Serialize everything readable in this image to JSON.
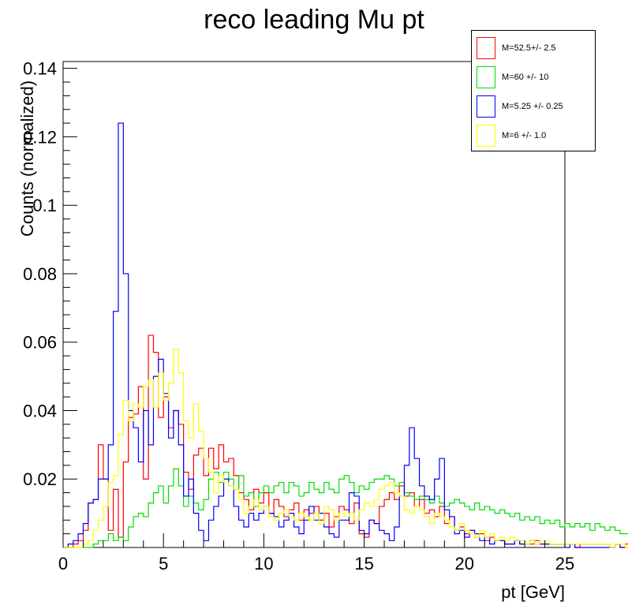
{
  "chart_data": {
    "type": "histogram",
    "title": "reco leading Mu pt",
    "xlabel": "pt [GeV]",
    "ylabel": "Counts (normalized)",
    "xlim": [
      0,
      25
    ],
    "ylim": [
      0,
      0.142
    ],
    "bin_width": 0.25,
    "x_ticks": [
      "0",
      "5",
      "10",
      "15",
      "20",
      "25"
    ],
    "y_ticks": [
      "0.02",
      "0.04",
      "0.06",
      "0.08",
      "0.1",
      "0.12",
      "0.14"
    ],
    "grid": false,
    "legend_position": "top-right",
    "series": [
      {
        "name": "M=52.5+/- 2.5",
        "color": "#ff0000",
        "values": [
          0,
          0,
          0.001,
          0.002,
          0.005,
          0.013,
          0.014,
          0.03,
          0.02,
          0.005,
          0.017,
          0.003,
          0.025,
          0.038,
          0.039,
          0.047,
          0.02,
          0.062,
          0.057,
          0.038,
          0.044,
          0.035,
          0.04,
          0.036,
          0.022,
          0.017,
          0.027,
          0.029,
          0.021,
          0.029,
          0.023,
          0.03,
          0.025,
          0.026,
          0.021,
          0.016,
          0.014,
          0.011,
          0.017,
          0.013,
          0.016,
          0.01,
          0.014,
          0.012,
          0.009,
          0.011,
          0.013,
          0.008,
          0.011,
          0.01,
          0.012,
          0.008,
          0.01,
          0.006,
          0.009,
          0.012,
          0.011,
          0.007,
          0.013,
          0.004,
          0.003,
          0.008,
          0.007,
          0.012,
          0.014,
          0.016,
          0.014,
          0.018,
          0.015,
          0.016,
          0.012,
          0.014,
          0.01,
          0.011,
          0.009,
          0.012,
          0.007,
          0.009,
          0.005,
          0.006,
          0.004,
          0.005,
          0.003,
          0.004,
          0.002,
          0.003,
          0.002,
          0.002,
          0.001,
          0.001,
          0.002,
          0.001,
          0.001,
          0.001,
          0.002,
          0.001,
          0.001,
          0.001,
          0.001,
          0.001,
          0.001,
          0.001,
          0.0,
          0.001,
          0.001,
          0.001,
          0.001,
          0.001,
          0.001,
          0.0,
          0.001,
          0.0,
          0.001,
          0.001,
          0.0,
          0.001,
          0.001,
          0.0,
          0.0,
          0.001,
          0.0,
          0.0,
          0.0,
          0.0,
          0.001,
          0.0,
          0.0,
          0.0,
          0.001,
          0.0,
          0.0,
          0.0,
          0.0,
          0.0,
          0.0,
          0.0,
          0.0,
          0.0,
          0.001,
          0.0,
          0.0,
          0.0,
          0.0,
          0.0,
          0.0,
          0.0,
          0.0,
          0.0,
          0.0,
          0.0,
          0.0,
          0.0,
          0.0,
          0.0,
          0.001,
          0.0,
          0.0,
          0.0,
          0.0,
          0.0,
          0.0,
          0.0,
          0.0,
          0.0,
          0.0,
          0.0,
          0.0,
          0.0,
          0.0,
          0.0,
          0.0,
          0.0,
          0.0,
          0.0,
          0.0,
          0.0,
          0.0,
          0.0,
          0.0,
          0.0,
          0.0,
          0.0,
          0.0,
          0.0,
          0.0,
          0.0,
          0.0,
          0.0,
          0.0,
          0.0,
          0.0,
          0.0,
          0.0,
          0.0,
          0.0,
          0.0,
          0.0,
          0.0,
          0.0,
          0.0,
          0.001,
          0.0,
          0.0,
          0.002,
          0.001,
          0.0
        ]
      },
      {
        "name": "M=60 +/- 10",
        "color": "#00dd00",
        "values": [
          0,
          0,
          0,
          0,
          0,
          0,
          0.001,
          0.002,
          0.002,
          0.004,
          0.002,
          0.003,
          0.002,
          0.006,
          0.009,
          0.01,
          0.009,
          0.013,
          0.016,
          0.018,
          0.013,
          0.018,
          0.023,
          0.018,
          0.012,
          0.015,
          0.013,
          0.011,
          0.014,
          0.02,
          0.022,
          0.019,
          0.022,
          0.02,
          0.017,
          0.021,
          0.015,
          0.016,
          0.012,
          0.016,
          0.018,
          0.016,
          0.018,
          0.019,
          0.016,
          0.019,
          0.018,
          0.015,
          0.016,
          0.019,
          0.017,
          0.016,
          0.019,
          0.017,
          0.016,
          0.02,
          0.021,
          0.019,
          0.016,
          0.018,
          0.017,
          0.019,
          0.02,
          0.02,
          0.021,
          0.02,
          0.018,
          0.019,
          0.016,
          0.015,
          0.014,
          0.015,
          0.014,
          0.013,
          0.015,
          0.013,
          0.012,
          0.013,
          0.014,
          0.013,
          0.012,
          0.011,
          0.013,
          0.011,
          0.012,
          0.011,
          0.01,
          0.011,
          0.01,
          0.009,
          0.01,
          0.008,
          0.009,
          0.008,
          0.009,
          0.007,
          0.008,
          0.007,
          0.008,
          0.006,
          0.007,
          0.006,
          0.007,
          0.006,
          0.007,
          0.005,
          0.007,
          0.006,
          0.005,
          0.006,
          0.005,
          0.004,
          0.004,
          0.005,
          0.004,
          0.004,
          0.003,
          0.004,
          0.003,
          0.003,
          0.003,
          0.003,
          0.004,
          0.002,
          0.003,
          0.003,
          0.002,
          0.002,
          0.002,
          0.003,
          0.002,
          0.002,
          0.002,
          0.003,
          0.002,
          0.002,
          0.002,
          0.002,
          0.002,
          0.002,
          0.002,
          0.001,
          0.002,
          0.002,
          0.001,
          0.002,
          0.001,
          0.002,
          0.002,
          0.002,
          0.002,
          0.002,
          0.001,
          0.001,
          0.002,
          0.001,
          0.002,
          0.001,
          0.001,
          0.001,
          0.001,
          0.002,
          0.001,
          0.001,
          0.001,
          0.001,
          0.001,
          0.001,
          0.001,
          0.001,
          0.001,
          0.001,
          0.001,
          0.001,
          0.001,
          0.001,
          0.001,
          0.001,
          0.001,
          0.001,
          0.001,
          0.001,
          0.001,
          0.001,
          0.001,
          0.001,
          0.001,
          0.001,
          0.001,
          0.001,
          0.001,
          0.001,
          0.001,
          0.001,
          0.001,
          0.001,
          0.001,
          0.001,
          0.001,
          0.001,
          0.001,
          0.001,
          0.001,
          0.002,
          0.001,
          0.002,
          0.003,
          0.002
        ]
      },
      {
        "name": "M=5.25 +/- 0.25",
        "color": "#0000ff",
        "values": [
          0,
          0.001,
          0.002,
          0.004,
          0.007,
          0.013,
          0.014,
          0.02,
          0.02,
          0.03,
          0.069,
          0.124,
          0.08,
          0.04,
          0.035,
          0.025,
          0.04,
          0.03,
          0.05,
          0.055,
          0.045,
          0.032,
          0.04,
          0.03,
          0.015,
          0.02,
          0.01,
          0.005,
          0.002,
          0.008,
          0.012,
          0.015,
          0.02,
          0.018,
          0.012,
          0.008,
          0.006,
          0.01,
          0.008,
          0.01,
          0.012,
          0.01,
          0.009,
          0.006,
          0.008,
          0.01,
          0.006,
          0.004,
          0.008,
          0.012,
          0.008,
          0.01,
          0.006,
          0.004,
          0.003,
          0.008,
          0.008,
          0.016,
          0.015,
          0.005,
          0.004,
          0.008,
          0.007,
          0.005,
          0.004,
          0.002,
          0.006,
          0.015,
          0.024,
          0.035,
          0.026,
          0.018,
          0.015,
          0.014,
          0.02,
          0.026,
          0.011,
          0.009,
          0.004,
          0.005,
          0.003,
          0.005,
          0.004,
          0.002,
          0.003,
          0.001,
          0.002,
          0.002,
          0.001,
          0.001,
          0.002,
          0.001,
          0.001,
          0.002,
          0.001,
          0.001,
          0.001,
          0.001,
          0.001,
          0.001,
          0.0,
          0.001,
          0.0,
          0.0,
          0.0,
          0.0,
          0.0,
          0.0,
          0.0,
          0.0,
          0.001,
          0.0,
          0.0,
          0.0,
          0.0,
          0.0,
          0.0,
          0.0,
          0.0,
          0.0,
          0.0,
          0.0,
          0.0,
          0.0,
          0.0,
          0.0,
          0.0,
          0.0,
          0.0,
          0.0,
          0.0,
          0.0,
          0.0,
          0.0,
          0.0,
          0.0,
          0.0,
          0.0,
          0.0,
          0.0,
          0.0,
          0.0,
          0.0,
          0.0,
          0.0,
          0.0,
          0.0,
          0.0,
          0.0,
          0.0,
          0.0,
          0.0,
          0.0,
          0.0,
          0.0,
          0.0,
          0.0,
          0.0,
          0.0,
          0.0,
          0.0,
          0.0,
          0.0,
          0.0,
          0.0,
          0.0,
          0.0,
          0.0,
          0.0,
          0.0,
          0.0,
          0.0,
          0.0,
          0.0,
          0.0,
          0.0,
          0.0,
          0.0,
          0.0,
          0.0,
          0.0,
          0.0,
          0.0,
          0.0,
          0.0,
          0.0,
          0.0,
          0.0,
          0.0,
          0.0,
          0.0,
          0.0,
          0.0,
          0.0,
          0.0,
          0.0,
          0.0,
          0.0,
          0.0,
          0.0,
          0.0,
          0.0,
          0.0,
          0.0,
          0.0,
          0.0,
          0.0,
          0.0,
          0.001,
          0.002,
          0.0,
          0.0
        ]
      },
      {
        "name": "M=6 +/- 1.0",
        "color": "#ffff00",
        "values": [
          0,
          0,
          0,
          0,
          0.001,
          0.002,
          0.005,
          0.008,
          0.012,
          0.019,
          0.021,
          0.033,
          0.043,
          0.037,
          0.042,
          0.041,
          0.047,
          0.049,
          0.041,
          0.051,
          0.043,
          0.048,
          0.058,
          0.051,
          0.037,
          0.032,
          0.042,
          0.034,
          0.026,
          0.022,
          0.016,
          0.021,
          0.019,
          0.018,
          0.017,
          0.014,
          0.01,
          0.012,
          0.014,
          0.011,
          0.012,
          0.009,
          0.008,
          0.01,
          0.011,
          0.009,
          0.008,
          0.01,
          0.009,
          0.008,
          0.01,
          0.007,
          0.012,
          0.011,
          0.008,
          0.01,
          0.009,
          0.01,
          0.008,
          0.011,
          0.013,
          0.012,
          0.014,
          0.017,
          0.018,
          0.019,
          0.016,
          0.015,
          0.011,
          0.01,
          0.012,
          0.011,
          0.009,
          0.007,
          0.01,
          0.009,
          0.008,
          0.006,
          0.005,
          0.007,
          0.005,
          0.004,
          0.003,
          0.005,
          0.003,
          0.004,
          0.002,
          0.003,
          0.002,
          0.003,
          0.002,
          0.002,
          0.001,
          0.002,
          0.001,
          0.002,
          0.002,
          0.001,
          0.001,
          0.001,
          0.001,
          0.001,
          0.001,
          0.001,
          0.001,
          0.001,
          0.001,
          0.001,
          0.001,
          0.0,
          0.001,
          0.001,
          0.0,
          0.001,
          0.0,
          0.001,
          0.0,
          0.0,
          0.0,
          0.001,
          0.0,
          0.0,
          0.0,
          0.001,
          0.0,
          0.0,
          0.0,
          0.0,
          0.0,
          0.0,
          0.001,
          0.0,
          0.0,
          0.0,
          0.0,
          0.0,
          0.0,
          0.0,
          0.001,
          0.0,
          0.0,
          0.0,
          0.0,
          0.0,
          0.0,
          0.0,
          0.0,
          0.0,
          0.0,
          0.0,
          0.0,
          0.0,
          0.0,
          0.0,
          0.0,
          0.0,
          0.0,
          0.0,
          0.0,
          0.0,
          0.0,
          0.0,
          0.0,
          0.0,
          0.0,
          0.0,
          0.0,
          0.0,
          0.0,
          0.0,
          0.0,
          0.0,
          0.0,
          0.0,
          0.0,
          0.0,
          0.0,
          0.0,
          0.0,
          0.0,
          0.0,
          0.0,
          0.0,
          0.0,
          0.0,
          0.0,
          0.0,
          0.0,
          0.0,
          0.0,
          0.0,
          0.0,
          0.0,
          0.0,
          0.0,
          0.0,
          0.0,
          0.0,
          0.0,
          0.0,
          0.0,
          0.0,
          0.0,
          0.0,
          0.0,
          0.0,
          0.0,
          0.0,
          0.0,
          0.0,
          0.0,
          0.0,
          0.0,
          0.0
        ]
      }
    ]
  }
}
